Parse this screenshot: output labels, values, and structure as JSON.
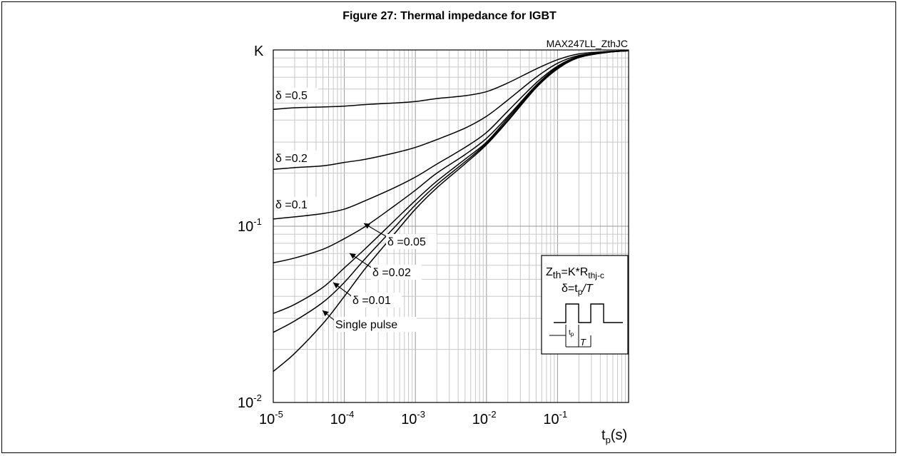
{
  "figure_title": "Figure 27: Thermal impedance for IGBT",
  "chart_data": {
    "type": "line",
    "title": "Figure 27: Thermal impedance for IGBT",
    "ylabel": "K",
    "xlabel_main": "t",
    "xlabel_sub": "p",
    "xlabel_unit": "(s)",
    "code": "MAX247LL_ZthJC",
    "x_scale": "log",
    "y_scale": "log",
    "xlim": [
      1e-05,
      1
    ],
    "ylim": [
      0.01,
      1
    ],
    "grid": true,
    "x_ticks": [
      {
        "base": "10",
        "exp": "-5"
      },
      {
        "base": "10",
        "exp": "-4"
      },
      {
        "base": "10",
        "exp": "-3"
      },
      {
        "base": "10",
        "exp": "-2"
      },
      {
        "base": "10",
        "exp": "-1"
      }
    ],
    "y_ticks": [
      {
        "base": "10",
        "exp": "-2"
      },
      {
        "base": "10",
        "exp": "-1"
      }
    ],
    "x": [
      1e-05,
      2e-05,
      5e-05,
      0.0001,
      0.0002,
      0.0005,
      0.001,
      0.002,
      0.005,
      0.01,
      0.02,
      0.05,
      0.1,
      0.2,
      0.5,
      1
    ],
    "series": [
      {
        "name": "δ =0.5",
        "values": [
          0.46,
          0.47,
          0.475,
          0.48,
          0.49,
          0.5,
          0.51,
          0.53,
          0.55,
          0.58,
          0.65,
          0.78,
          0.88,
          0.95,
          0.98,
          0.99
        ]
      },
      {
        "name": "δ =0.2",
        "values": [
          0.21,
          0.215,
          0.22,
          0.23,
          0.24,
          0.26,
          0.28,
          0.31,
          0.36,
          0.42,
          0.52,
          0.7,
          0.84,
          0.93,
          0.975,
          0.99
        ]
      },
      {
        "name": "δ =0.1",
        "values": [
          0.11,
          0.113,
          0.118,
          0.125,
          0.14,
          0.165,
          0.19,
          0.225,
          0.28,
          0.34,
          0.45,
          0.65,
          0.81,
          0.92,
          0.97,
          0.99
        ]
      },
      {
        "name": "δ =0.05",
        "values": [
          0.062,
          0.066,
          0.074,
          0.085,
          0.1,
          0.13,
          0.16,
          0.2,
          0.255,
          0.315,
          0.42,
          0.63,
          0.8,
          0.915,
          0.97,
          0.99
        ]
      },
      {
        "name": "δ =0.02",
        "values": [
          0.032,
          0.036,
          0.045,
          0.058,
          0.075,
          0.107,
          0.14,
          0.18,
          0.24,
          0.3,
          0.41,
          0.62,
          0.79,
          0.91,
          0.97,
          0.99
        ]
      },
      {
        "name": "δ =0.01",
        "values": [
          0.025,
          0.029,
          0.037,
          0.048,
          0.066,
          0.098,
          0.132,
          0.172,
          0.232,
          0.295,
          0.4,
          0.615,
          0.785,
          0.91,
          0.97,
          0.99
        ]
      },
      {
        "name": "Single pulse",
        "values": [
          0.015,
          0.019,
          0.028,
          0.04,
          0.058,
          0.09,
          0.125,
          0.165,
          0.226,
          0.29,
          0.395,
          0.61,
          0.78,
          0.905,
          0.968,
          0.99
        ]
      }
    ],
    "inset": {
      "line1_main": "Z",
      "line1_sub1": "th",
      "line1_mid": "=K*R",
      "line1_sub2": "thj-c",
      "line2_main": "δ=t",
      "line2_sub": "p",
      "line2_end": "/T",
      "tp_main": "t",
      "tp_sub": "p",
      "T_label": "T"
    }
  }
}
